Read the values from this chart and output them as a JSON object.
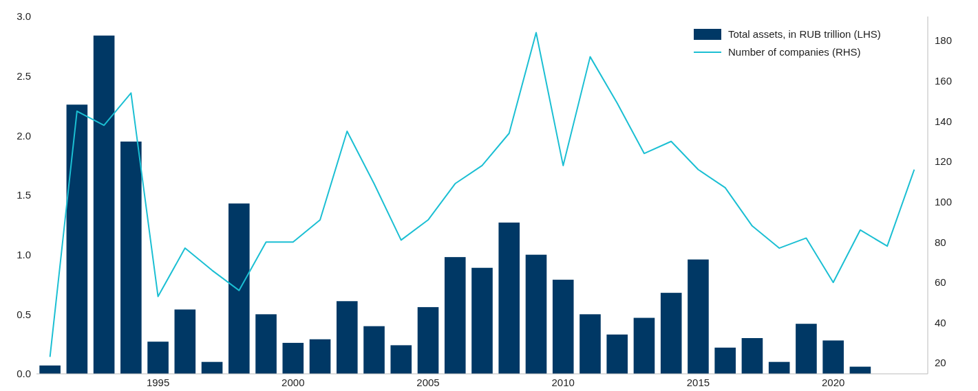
{
  "chart_data": {
    "type": "bar",
    "x": [
      1991,
      1992,
      1993,
      1994,
      1995,
      1996,
      1997,
      1998,
      1999,
      2000,
      2001,
      2002,
      2003,
      2004,
      2005,
      2006,
      2007,
      2008,
      2009,
      2010,
      2011,
      2012,
      2013,
      2014,
      2015,
      2016,
      2017,
      2018,
      2019,
      2020,
      2021,
      2022,
      2023
    ],
    "series": [
      {
        "name": "Total assets, in RUB trillion (LHS)",
        "color": "#003865",
        "values": [
          0.07,
          2.26,
          2.84,
          1.95,
          0.27,
          0.54,
          0.1,
          1.43,
          0.5,
          0.26,
          0.29,
          0.61,
          0.4,
          0.24,
          0.56,
          0.98,
          0.89,
          1.27,
          1.0,
          0.79,
          0.5,
          0.33,
          0.47,
          0.68,
          0.96,
          0.22,
          0.3,
          0.1,
          0.42,
          0.28,
          0.06,
          null,
          null
        ]
      },
      {
        "name": "Number of companies (RHS)",
        "type": "line",
        "axis": "y2",
        "color": "#1bbfd3",
        "values": [
          23,
          145,
          138,
          154,
          53,
          77,
          66,
          56,
          80,
          80,
          91,
          135,
          109,
          81,
          91,
          109,
          118,
          134,
          184,
          118,
          172,
          149,
          124,
          130,
          116,
          107,
          88,
          77,
          82,
          60,
          86,
          78,
          116
        ]
      }
    ],
    "xlim": [
      1990.5,
      2023.5
    ],
    "xticks": [
      1995,
      2000,
      2005,
      2010,
      2015,
      2020
    ],
    "ylim": [
      0,
      3
    ],
    "yticks": [
      {
        "value": 0,
        "label": "0.0"
      },
      {
        "value": 0.5,
        "label": "0.5"
      },
      {
        "value": 1,
        "label": "1.0"
      },
      {
        "value": 1.5,
        "label": "1.5"
      },
      {
        "value": 2,
        "label": "2.0"
      },
      {
        "value": 2.5,
        "label": "2.5"
      },
      {
        "value": 3,
        "label": "3.0"
      }
    ],
    "y2lim": [
      14.6,
      192
    ],
    "y2ticks": [
      20,
      40,
      60,
      80,
      100,
      120,
      140,
      160,
      180
    ],
    "legend": "top right",
    "grid": false,
    "marker": "none",
    "line_style": "solid"
  }
}
